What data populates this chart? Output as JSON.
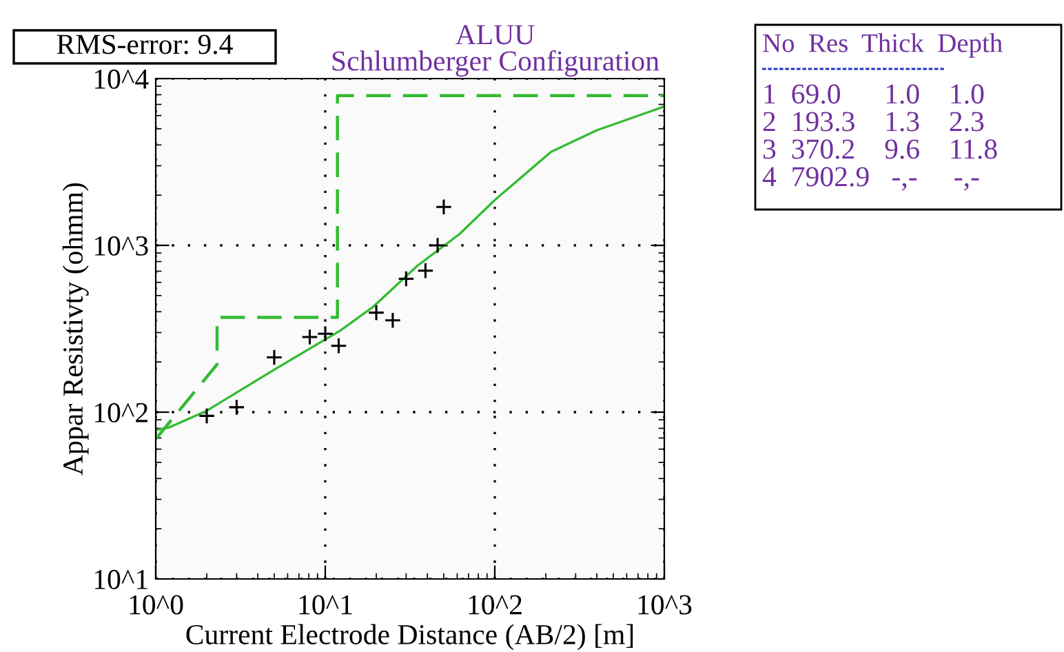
{
  "chart_data": {
    "type": "scatter",
    "title": "ALUU",
    "subtitle": "Schlumberger Configuration",
    "xlabel": "Current Electrode Distance (AB/2) [m]",
    "ylabel": "Appar Resistivty (ohmm)",
    "annotations": [
      "RMS-error: 9.4",
      "No  Res  Thick  Depth",
      "1  69.0      1.0    1.0",
      "2  193.3    1.3    2.3",
      "3  370.2    9.6    11.8",
      "4  7902.9   -,-     -,-"
    ],
    "log": "xy",
    "xlim": [
      1,
      1000
    ],
    "ylim": [
      10,
      10000
    ],
    "xticks": [
      {
        "value": 1,
        "label": "10^0"
      },
      {
        "value": 10,
        "label": "10^1"
      },
      {
        "value": 100,
        "label": "10^2"
      },
      {
        "value": 1000,
        "label": "10^3"
      }
    ],
    "yticks": [
      {
        "value": 10,
        "label": "10^1"
      },
      {
        "value": 100,
        "label": "10^2"
      },
      {
        "value": 1000,
        "label": "10^3"
      },
      {
        "value": 10000,
        "label": "10^4"
      }
    ],
    "grid": true,
    "series": [
      {
        "color": "#000000",
        "marker": "cross",
        "x": [
          2,
          3,
          5,
          8.1,
          10,
          12,
          20,
          25,
          30,
          39,
          46,
          50
        ],
        "values": [
          95,
          107,
          213,
          282,
          295,
          250,
          395,
          355,
          630,
          705,
          1000,
          1700
        ]
      },
      {
        "type": "line",
        "color": "#33bb33",
        "line_style": "solid",
        "x": [
          1,
          1.2,
          2,
          5.1,
          12.3,
          19,
          35,
          62,
          100,
          215,
          400,
          1000
        ],
        "values": [
          78,
          81,
          102,
          182,
          309,
          425,
          755,
          1170,
          1870,
          3640,
          4900,
          6800
        ]
      },
      {
        "type": "line",
        "color": "#33bb33",
        "line_style": "dashed",
        "x": [
          1,
          2.3,
          2.3,
          11.8,
          11.8,
          1000
        ],
        "values": [
          69,
          193.3,
          370.2,
          370.2,
          7902.9,
          7902.9
        ]
      }
    ]
  }
}
